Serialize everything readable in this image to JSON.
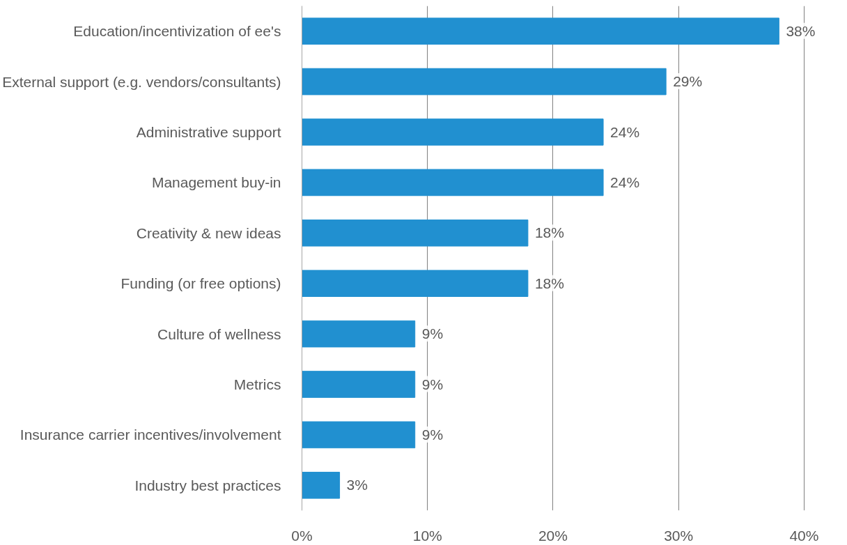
{
  "chart_data": {
    "type": "bar",
    "orientation": "horizontal",
    "categories": [
      "Education/incentivization of ee's",
      "External support (e.g. vendors/consultants)",
      "Administrative support",
      "Management buy-in",
      "Creativity & new ideas",
      "Funding (or free options)",
      "Culture of wellness",
      "Metrics",
      "Insurance carrier incentives/involvement",
      "Industry best practices"
    ],
    "values": [
      38,
      29,
      24,
      24,
      18,
      18,
      9,
      9,
      9,
      3
    ],
    "value_labels": [
      "38%",
      "29%",
      "24%",
      "24%",
      "18%",
      "18%",
      "9%",
      "9%",
      "9%",
      "3%"
    ],
    "color": "#2190d0",
    "xlim": [
      0,
      40
    ],
    "xticks": [
      {
        "value": 0,
        "label": "0%"
      },
      {
        "value": 10,
        "label": "10%"
      },
      {
        "value": 20,
        "label": "20%"
      },
      {
        "value": 30,
        "label": "30%"
      },
      {
        "value": 40,
        "label": "40%"
      }
    ],
    "grid": "x"
  }
}
